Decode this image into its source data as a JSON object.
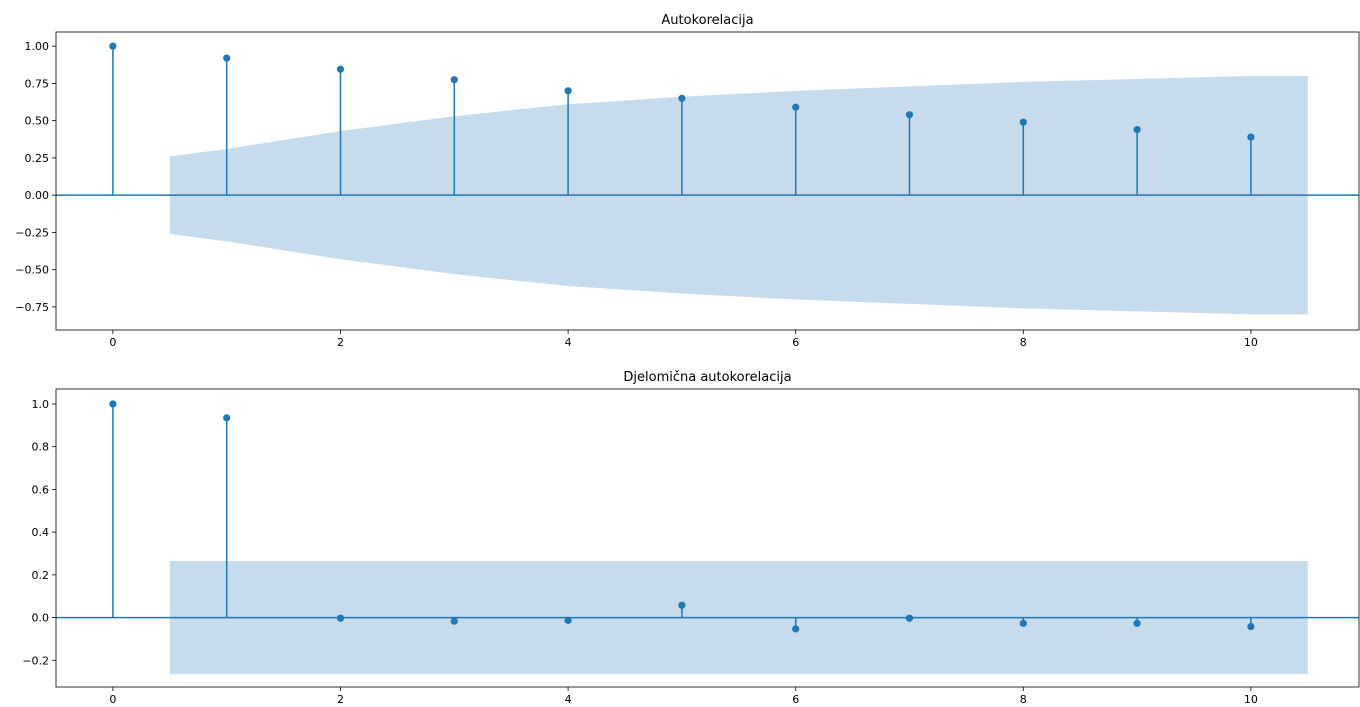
{
  "chart_data": [
    {
      "type": "stem",
      "title": "Autokorelacija",
      "x": [
        0,
        1,
        2,
        3,
        4,
        5,
        6,
        7,
        8,
        9,
        10
      ],
      "values": [
        1.0,
        0.92,
        0.845,
        0.775,
        0.7,
        0.65,
        0.59,
        0.54,
        0.49,
        0.44,
        0.39
      ],
      "confidence_band": {
        "x": [
          0.5,
          1,
          2,
          3,
          4,
          5,
          6,
          7,
          8,
          9,
          10,
          10.5
        ],
        "upper": [
          0.26,
          0.31,
          0.43,
          0.53,
          0.61,
          0.66,
          0.7,
          0.73,
          0.76,
          0.78,
          0.8,
          0.8
        ]
      },
      "xlim": [
        -0.5,
        10.95
      ],
      "ylim": [
        -0.905,
        1.095
      ],
      "xticks": [
        0,
        2,
        4,
        6,
        8,
        10
      ],
      "yticks": [
        1.0,
        0.75,
        0.5,
        0.25,
        0.0,
        -0.25,
        -0.5,
        -0.75
      ],
      "ytick_labels": [
        "1.00",
        "0.75",
        "0.50",
        "0.25",
        "0.00",
        "−0.25",
        "−0.50",
        "−0.75"
      ],
      "color": "#1f77b4",
      "band_color": "#c6dbeb"
    },
    {
      "type": "stem",
      "title": "Djelomična autokorelacija",
      "x": [
        0,
        1,
        2,
        3,
        4,
        5,
        6,
        7,
        8,
        9,
        10
      ],
      "values": [
        1.0,
        0.935,
        -0.003,
        -0.017,
        -0.013,
        0.058,
        -0.053,
        -0.003,
        -0.027,
        -0.027,
        -0.042
      ],
      "confidence_band": {
        "x": [
          0.5,
          10.5
        ],
        "upper": [
          0.265,
          0.265
        ]
      },
      "xlim": [
        -0.5,
        10.95
      ],
      "ylim": [
        -0.325,
        1.07
      ],
      "xticks": [
        0,
        2,
        4,
        6,
        8,
        10
      ],
      "yticks": [
        1.0,
        0.8,
        0.6,
        0.4,
        0.2,
        0.0,
        -0.2
      ],
      "ytick_labels": [
        "1.0",
        "0.8",
        "0.6",
        "0.4",
        "0.2",
        "0.0",
        "−0.2"
      ],
      "color": "#1f77b4",
      "band_color": "#c6dbeb"
    }
  ]
}
